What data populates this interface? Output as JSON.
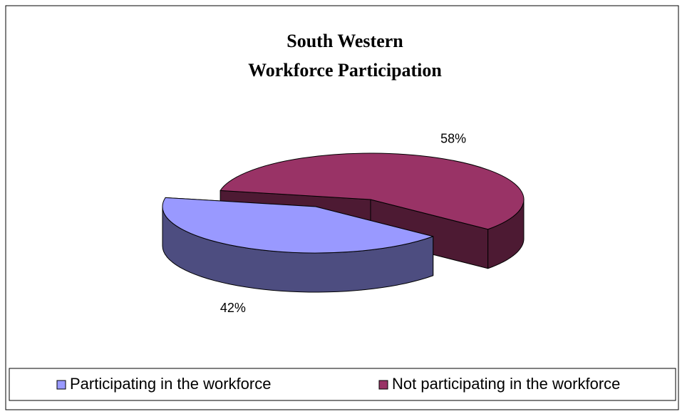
{
  "chart_data": {
    "type": "pie3d",
    "title": [
      "South Western",
      "Workforce Participation"
    ],
    "categories": [
      "Participating in the workforce",
      "Not participating in the workforce"
    ],
    "values": [
      42,
      58
    ],
    "value_labels": [
      "42%",
      "58%"
    ],
    "colors": [
      "#9999ff",
      "#993366"
    ],
    "legend": "bottom"
  }
}
